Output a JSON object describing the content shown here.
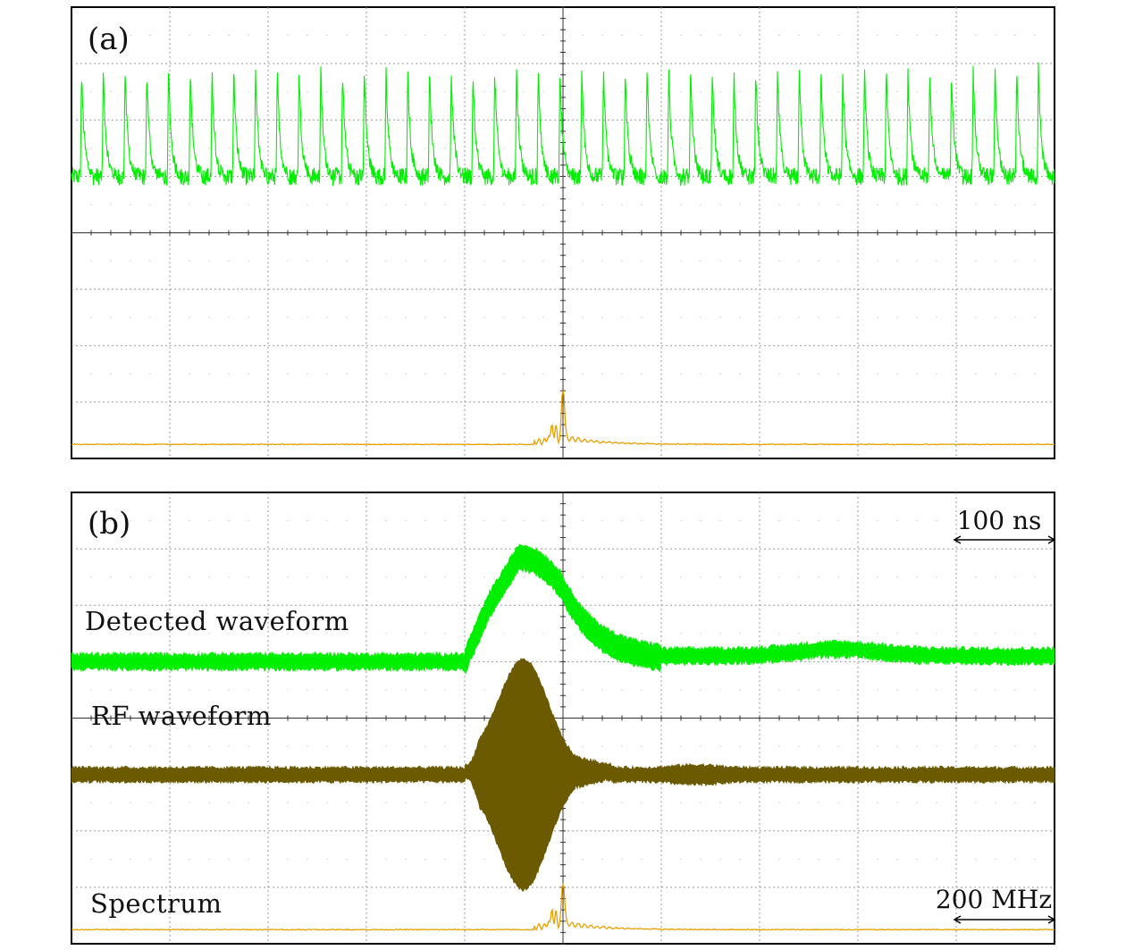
{
  "chart_data": [
    {
      "panel": "(a)",
      "type": "line",
      "grid": true,
      "grid_divisions": {
        "x": 10,
        "y": 8
      },
      "series": [
        {
          "trace": "detected",
          "color": "#00ee00",
          "pulses": 45,
          "baseline_div": 5.0,
          "peak_div": 6.9,
          "noise_div": 0.1
        },
        {
          "trace": "spectrum",
          "color": "#e8a000",
          "baseline_div": 0.25,
          "peak_div": 1.2,
          "peak_center_div": 5.0
        }
      ]
    },
    {
      "panel": "(b)",
      "type": "line",
      "grid": true,
      "grid_divisions": {
        "x": 10,
        "y": 8
      },
      "time_scale_label": "100 ns",
      "freq_scale_label": "200 MHz",
      "series": [
        {
          "name": "Detected waveform",
          "trace": "detected",
          "color": "#00ee00",
          "baseline_div": 5.0,
          "pulse_start_div": 4.0,
          "pulse_peak_div": 4.55,
          "pulse_peak_level_div": 6.85,
          "pulse_end_div": 6.0
        },
        {
          "name": "RF waveform",
          "trace": "rf",
          "color": "#6b5a00",
          "baseline_div": 3.0,
          "envelope_halfwidth_div": 0.12,
          "burst_start_div": 4.0,
          "burst_peak_div": 4.6,
          "burst_peak_halfwidth_div": 2.0
        },
        {
          "name": "Spectrum",
          "trace": "spectrum",
          "color": "#e8a000",
          "baseline_div": 0.25,
          "peak_div": 1.05,
          "peak_center_div": 5.0
        }
      ]
    }
  ]
}
